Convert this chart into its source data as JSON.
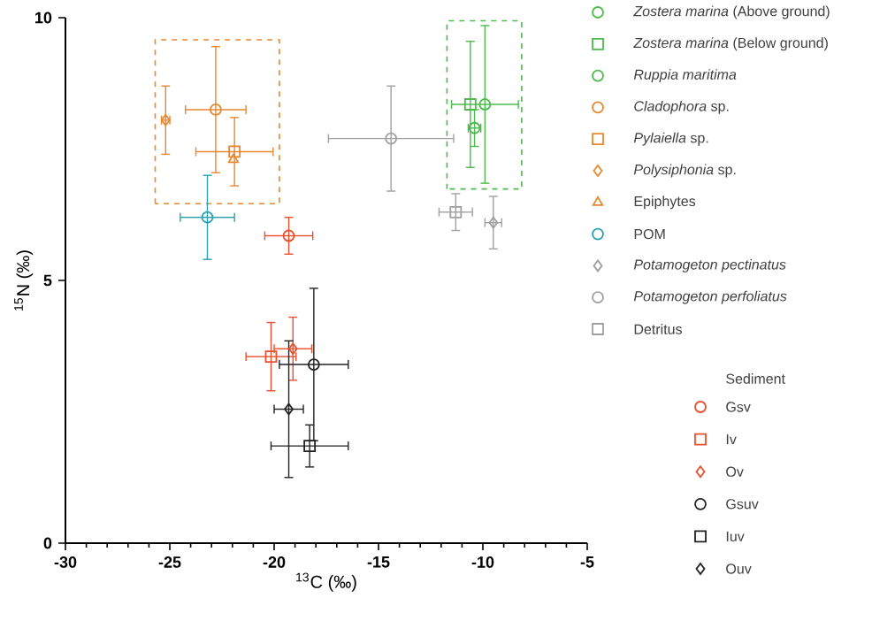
{
  "chart_data": {
    "type": "scatter",
    "xlabel": "$^{13}$C (‰)",
    "ylabel": "$^{15}$N (‰)",
    "xlim": [
      -30,
      -5
    ],
    "xticks": [
      -30,
      -25,
      -20,
      -15,
      -10,
      -5
    ],
    "ylim": [
      0,
      10
    ],
    "yticks": [
      0,
      5,
      10
    ],
    "legend": "right",
    "legend_title": "Sediment",
    "series": [
      {
        "name": "*Zostera marina* (Above ground)",
        "color": "#4cbb4c",
        "marker": "circle",
        "x": [
          -9.9
        ],
        "values": [
          8.35
        ],
        "xerrors": [
          1.6
        ],
        "errors": [
          1.5
        ]
      },
      {
        "name": "*Zostera marina* (Below ground)",
        "color": "#4cbb4c",
        "marker": "square",
        "x": [
          -10.6
        ],
        "values": [
          8.35
        ],
        "errors": [
          1.2
        ]
      },
      {
        "name": "*Ruppia maritima*",
        "color": "#4cbb4c",
        "marker": "circle",
        "x": [
          -10.4
        ],
        "values": [
          7.9
        ],
        "xerrors": [
          0.3
        ],
        "errors": [
          0.35
        ]
      },
      {
        "name": "*Cladophora* sp.",
        "color": "#e8872e",
        "marker": "circle",
        "x": [
          -22.8
        ],
        "values": [
          8.25
        ],
        "xerrors": [
          1.45
        ],
        "errors": [
          1.2
        ]
      },
      {
        "name": "*Pylaiella* sp.",
        "color": "#e8872e",
        "marker": "square",
        "x": [
          -21.9
        ],
        "values": [
          7.45
        ],
        "xerrors": [
          1.85
        ],
        "errors": [
          0.65
        ]
      },
      {
        "name": "*Polysiphonia* sp.",
        "color": "#e8872e",
        "marker": "diamond",
        "x": [
          -25.2
        ],
        "values": [
          8.05
        ],
        "xerrors": [
          0.2
        ],
        "errors": [
          0.65
        ]
      },
      {
        "name": "Epiphytes",
        "color": "#e8872e",
        "marker": "triangle",
        "x": [
          -21.95
        ],
        "values": [
          7.3
        ]
      },
      {
        "name": "POM",
        "color": "#2aa0b0",
        "marker": "circle",
        "x": [
          -23.2
        ],
        "values": [
          6.2
        ],
        "xerrors": [
          1.3
        ],
        "errors": [
          0.8
        ]
      },
      {
        "name": "*Potamogeton pectinatus*",
        "color": "#a0a0a0",
        "marker": "diamond",
        "x": [
          -9.5
        ],
        "values": [
          6.1
        ],
        "xerrors": [
          0.4
        ],
        "errors": [
          0.5
        ]
      },
      {
        "name": "*Potamogeton perfoliatus*",
        "color": "#a0a0a0",
        "marker": "circle",
        "x": [
          -14.4
        ],
        "values": [
          7.7
        ],
        "xerrors": [
          3.0
        ],
        "errors": [
          1.0
        ]
      },
      {
        "name": "Detritus",
        "color": "#a0a0a0",
        "marker": "square",
        "x": [
          -11.3
        ],
        "values": [
          6.3
        ],
        "xerrors": [
          0.8
        ],
        "errors": [
          0.35
        ]
      },
      {
        "name": "Gsv",
        "color": "#e8502e",
        "marker": "circle",
        "x": [
          -19.3
        ],
        "values": [
          5.85
        ],
        "xerrors": [
          1.15
        ],
        "errors": [
          0.35
        ]
      },
      {
        "name": "Iv",
        "color": "#e8502e",
        "marker": "square",
        "x": [
          -20.15
        ],
        "values": [
          3.55
        ],
        "xerrors": [
          1.2
        ],
        "errors": [
          0.65
        ]
      },
      {
        "name": "Ov",
        "color": "#e8502e",
        "marker": "diamond",
        "x": [
          -19.1
        ],
        "values": [
          3.7
        ],
        "xerrors": [
          0.9
        ],
        "errors": [
          0.6
        ]
      },
      {
        "name": "Gsuv",
        "color": "#222222",
        "marker": "circle",
        "x": [
          -18.1
        ],
        "values": [
          3.4
        ],
        "xerrors": [
          1.65
        ],
        "errors": [
          1.45
        ]
      },
      {
        "name": "Iuv",
        "color": "#222222",
        "marker": "square",
        "x": [
          -18.3
        ],
        "values": [
          1.85
        ],
        "xerrors": [
          1.85
        ],
        "errors": [
          0.4
        ]
      },
      {
        "name": "Ouv",
        "color": "#222222",
        "marker": "diamond",
        "x": [
          -19.3
        ],
        "values": [
          2.55
        ],
        "xerrors": [
          0.7
        ],
        "errors": [
          1.3
        ]
      }
    ]
  }
}
